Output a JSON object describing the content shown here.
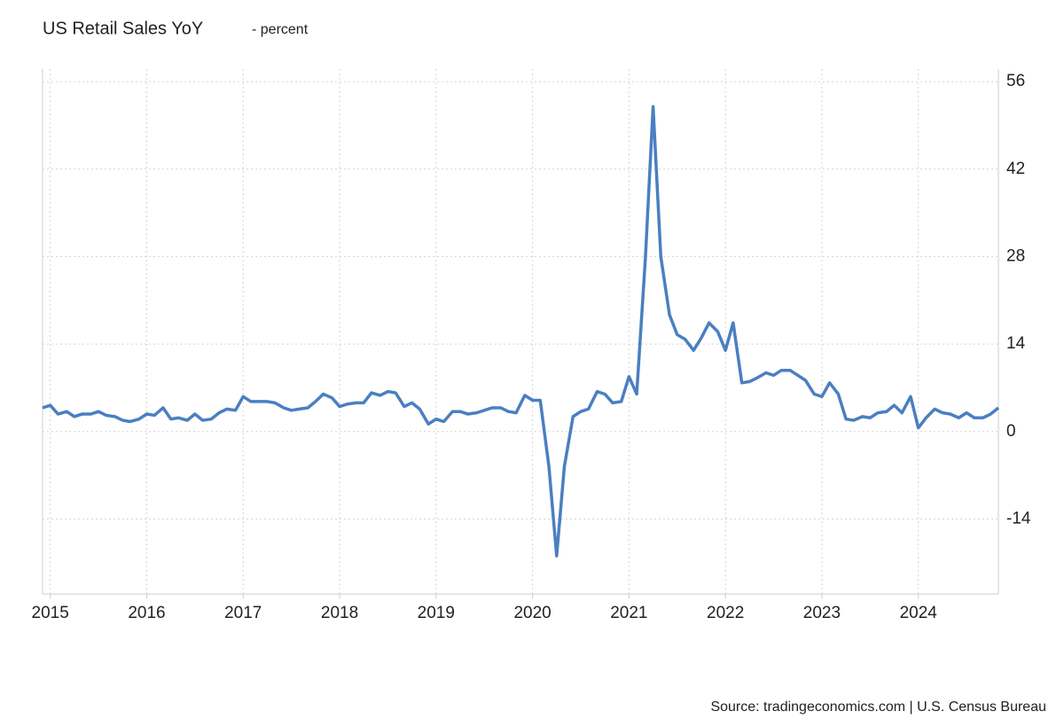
{
  "chart_data": {
    "type": "line",
    "title": "US Retail Sales YoY",
    "subtitle": "- percent",
    "source": "Source: tradingeconomics.com | U.S. Census Bureau",
    "x": [
      2014.92,
      2015.0,
      2015.08,
      2015.17,
      2015.25,
      2015.33,
      2015.42,
      2015.5,
      2015.58,
      2015.67,
      2015.75,
      2015.83,
      2015.92,
      2016.0,
      2016.08,
      2016.17,
      2016.25,
      2016.33,
      2016.42,
      2016.5,
      2016.58,
      2016.67,
      2016.75,
      2016.83,
      2016.92,
      2017.0,
      2017.08,
      2017.17,
      2017.25,
      2017.33,
      2017.42,
      2017.5,
      2017.58,
      2017.67,
      2017.75,
      2017.83,
      2017.92,
      2018.0,
      2018.08,
      2018.17,
      2018.25,
      2018.33,
      2018.42,
      2018.5,
      2018.58,
      2018.67,
      2018.75,
      2018.83,
      2018.92,
      2019.0,
      2019.08,
      2019.17,
      2019.25,
      2019.33,
      2019.42,
      2019.5,
      2019.58,
      2019.67,
      2019.75,
      2019.83,
      2019.92,
      2020.0,
      2020.08,
      2020.17,
      2020.25,
      2020.33,
      2020.42,
      2020.5,
      2020.58,
      2020.67,
      2020.75,
      2020.83,
      2020.92,
      2021.0,
      2021.08,
      2021.17,
      2021.25,
      2021.33,
      2021.42,
      2021.5,
      2021.58,
      2021.67,
      2021.75,
      2021.83,
      2021.92,
      2022.0,
      2022.08,
      2022.17,
      2022.25,
      2022.33,
      2022.42,
      2022.5,
      2022.58,
      2022.67,
      2022.75,
      2022.83,
      2022.92,
      2023.0,
      2023.08,
      2023.17,
      2023.25,
      2023.33,
      2023.42,
      2023.5,
      2023.58,
      2023.67,
      2023.75,
      2023.83,
      2023.92,
      2024.0,
      2024.08,
      2024.17,
      2024.25,
      2024.33,
      2024.42,
      2024.5,
      2024.58,
      2024.67,
      2024.75,
      2024.83
    ],
    "series": [
      {
        "name": "US Retail Sales YoY",
        "color": "#4a7fc1",
        "values": [
          3.8,
          4.2,
          2.8,
          3.2,
          2.4,
          2.8,
          2.8,
          3.2,
          2.6,
          2.4,
          1.8,
          1.6,
          2.0,
          2.8,
          2.6,
          3.8,
          2.0,
          2.2,
          1.8,
          2.8,
          1.8,
          2.0,
          3.0,
          3.6,
          3.4,
          5.6,
          4.8,
          4.8,
          4.8,
          4.6,
          3.8,
          3.4,
          3.6,
          3.8,
          4.8,
          6.0,
          5.4,
          4.0,
          4.4,
          4.6,
          4.6,
          6.2,
          5.8,
          6.4,
          6.2,
          4.0,
          4.6,
          3.6,
          1.2,
          2.0,
          1.6,
          3.2,
          3.2,
          2.8,
          3.0,
          3.4,
          3.8,
          3.8,
          3.2,
          3.0,
          5.8,
          5.0,
          5.0,
          -5.6,
          -19.9,
          -5.6,
          2.4,
          3.2,
          3.6,
          6.4,
          6.0,
          4.6,
          4.8,
          8.8,
          6.0,
          27.7,
          52.0,
          28.0,
          18.7,
          15.5,
          14.8,
          13.0,
          15.0,
          17.4,
          16.0,
          13.0,
          17.4,
          7.8,
          8.0,
          8.6,
          9.4,
          9.0,
          9.8,
          9.8,
          9.0,
          8.2,
          6.0,
          5.6,
          7.8,
          6.0,
          2.0,
          1.8,
          2.4,
          2.2,
          3.0,
          3.2,
          4.2,
          3.0,
          5.6,
          0.6,
          2.2,
          3.6,
          3.0,
          2.8,
          2.2,
          3.0,
          2.2,
          2.2,
          2.8,
          3.8
        ]
      }
    ],
    "xlim": [
      2014.92,
      2024.83
    ],
    "xticks": [
      2015,
      2016,
      2017,
      2018,
      2019,
      2020,
      2021,
      2022,
      2023,
      2024
    ],
    "ylim": [
      -26,
      58
    ],
    "yticks": [
      -14,
      0,
      14,
      28,
      42,
      56
    ],
    "grid": true
  }
}
